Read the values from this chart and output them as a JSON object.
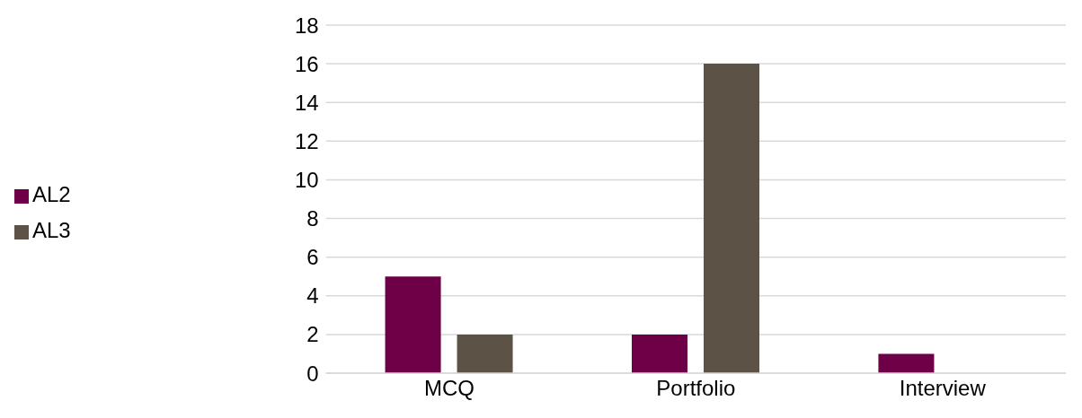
{
  "chart_data": {
    "type": "bar",
    "categories": [
      "MCQ",
      "Portfolio",
      "Interview"
    ],
    "series": [
      {
        "name": "AL2",
        "color": "#6d0046",
        "values": [
          5,
          2,
          1
        ]
      },
      {
        "name": "AL3",
        "color": "#5c5346",
        "values": [
          2,
          16,
          0
        ]
      }
    ],
    "ylim": [
      0,
      18
    ],
    "yticks": [
      0,
      2,
      4,
      6,
      8,
      10,
      12,
      14,
      16,
      18
    ],
    "grid": "y",
    "legend": "left"
  }
}
